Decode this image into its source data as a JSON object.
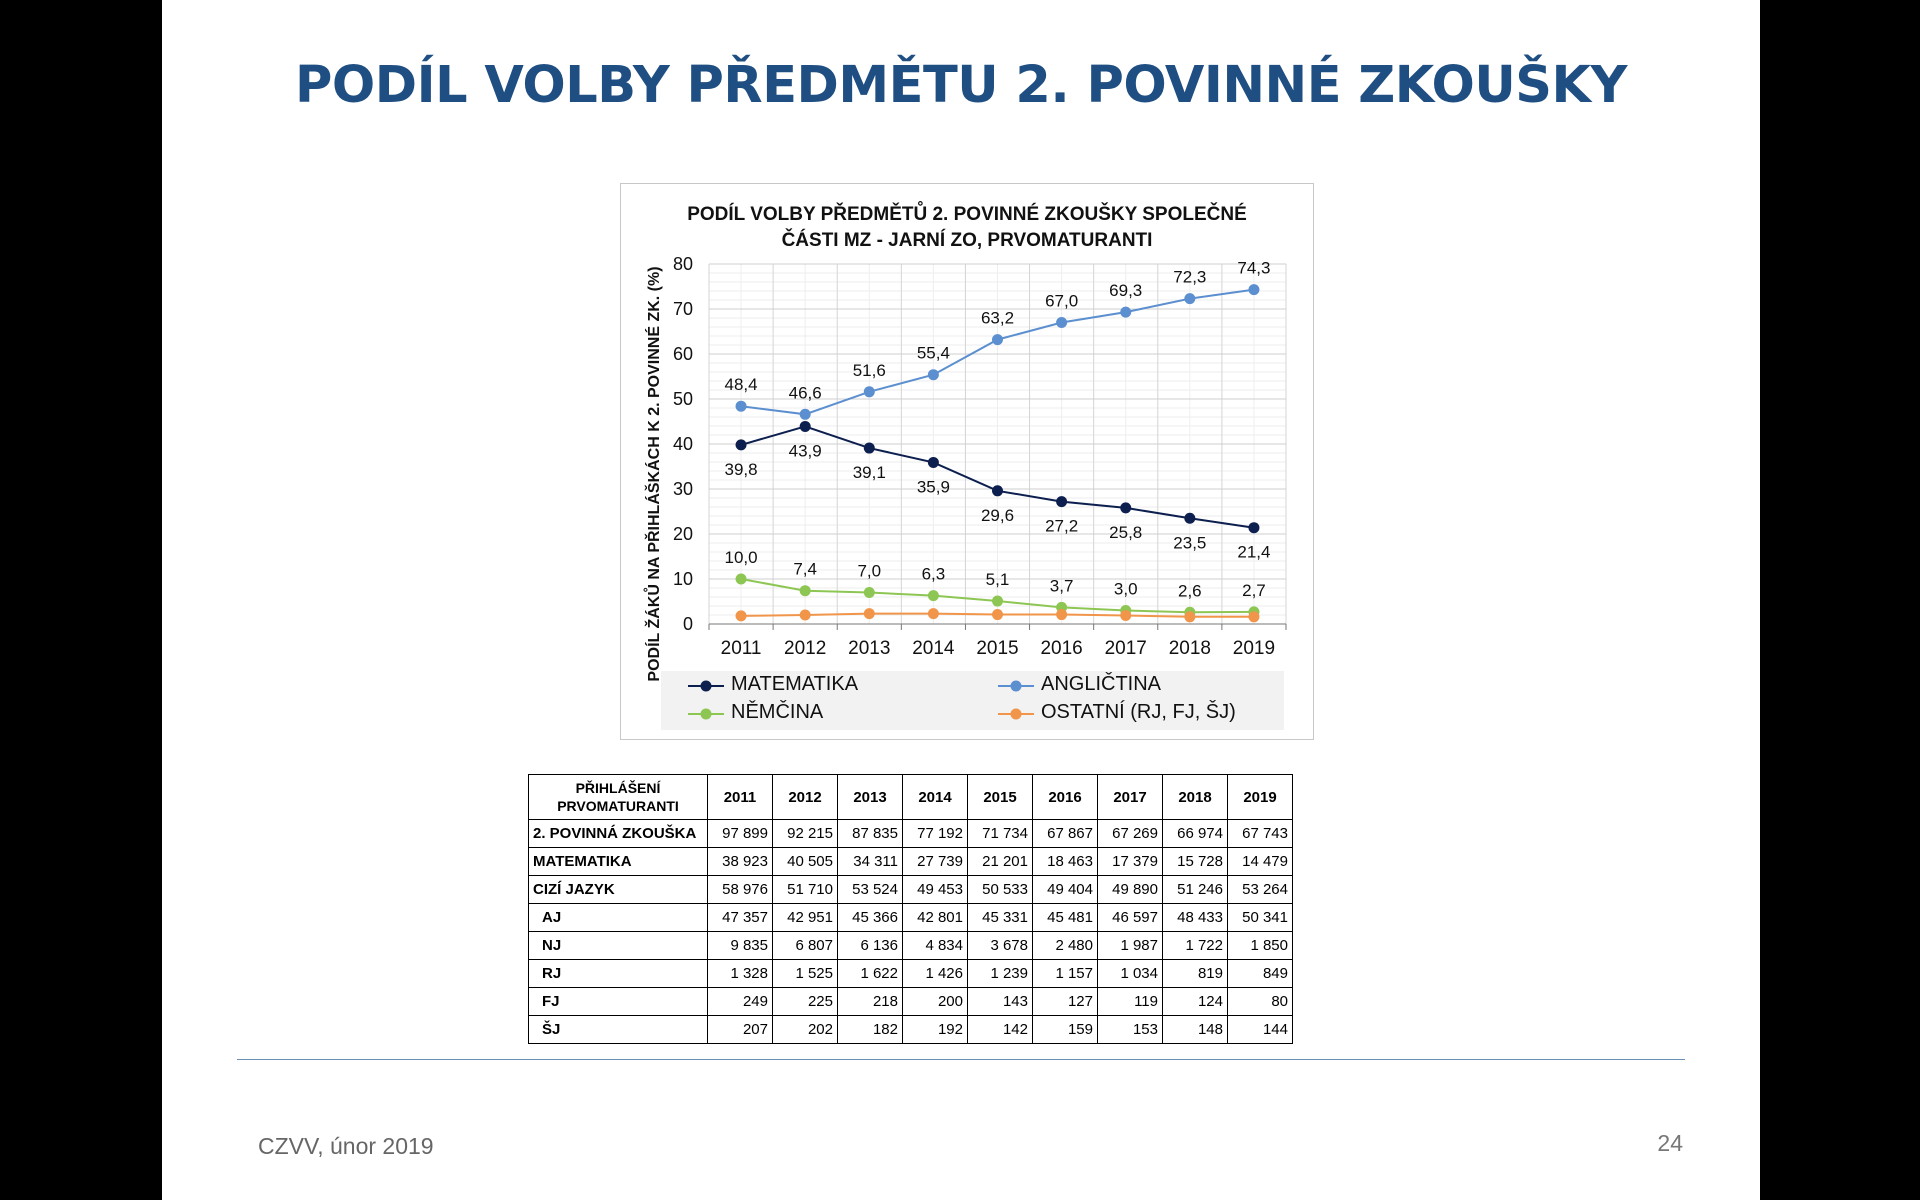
{
  "slide": {
    "title": "PODÍL VOLBY PŘEDMĚTU 2. POVINNÉ ZKOUŠKY",
    "footer_left": "CZVV, únor 2019",
    "page_number": "24"
  },
  "chart_data": {
    "type": "line",
    "title_line1": "PODÍL VOLBY PŘEDMĚTŮ 2. POVINNÉ ZKOUŠKY SPOLEČNÉ",
    "title_line2": "ČÁSTI MZ - JARNÍ ZO, PRVOMATURANTI",
    "ylabel": "PODÍL ŽÁKŮ NA PŘIHLÁŠKÁCH K 2. POVINNÉ ZK. (%)",
    "xlabel": "",
    "categories": [
      "2011",
      "2012",
      "2013",
      "2014",
      "2015",
      "2016",
      "2017",
      "2018",
      "2019"
    ],
    "ylim": [
      0,
      80
    ],
    "yticks": [
      0,
      10,
      20,
      30,
      40,
      50,
      60,
      70,
      80
    ],
    "grid": true,
    "legend_position": "bottom",
    "series": [
      {
        "name": "MATEMATIKA",
        "color": "#0d1f4f",
        "values": [
          39.8,
          43.9,
          39.1,
          35.9,
          29.6,
          27.2,
          25.8,
          23.5,
          21.4
        ],
        "labels": [
          "39,8",
          "43,9",
          "39,1",
          "35,9",
          "29,6",
          "27,2",
          "25,8",
          "23,5",
          "21,4"
        ],
        "label_pos": "below"
      },
      {
        "name": "ANGLIČTINA",
        "color": "#5b8fd0",
        "values": [
          48.4,
          46.6,
          51.6,
          55.4,
          63.2,
          67.0,
          69.3,
          72.3,
          74.3
        ],
        "labels": [
          "48,4",
          "46,6",
          "51,6",
          "55,4",
          "63,2",
          "67,0",
          "69,3",
          "72,3",
          "74,3"
        ],
        "label_pos": "above"
      },
      {
        "name": "NĚMČINA",
        "color": "#8dc653",
        "values": [
          10.0,
          7.4,
          7.0,
          6.3,
          5.1,
          3.7,
          3.0,
          2.6,
          2.7
        ],
        "labels": [
          "10,0",
          "7,4",
          "7,0",
          "6,3",
          "5,1",
          "3,7",
          "3,0",
          "2,6",
          "2,7"
        ],
        "label_pos": "above"
      },
      {
        "name": "OSTATNÍ (RJ, FJ, ŠJ)",
        "color": "#f0954a",
        "values": [
          1.8,
          2.0,
          2.3,
          2.3,
          2.1,
          2.1,
          1.9,
          1.6,
          1.6
        ],
        "labels": [],
        "label_pos": "none"
      }
    ]
  },
  "table": {
    "header_label": [
      "PŘIHLÁŠENÍ",
      "PRVOMATURANTI"
    ],
    "years": [
      "2011",
      "2012",
      "2013",
      "2014",
      "2015",
      "2016",
      "2017",
      "2018",
      "2019"
    ],
    "rows": [
      {
        "label": "2. POVINNÁ ZKOUŠKA",
        "sub": false,
        "values": [
          "97 899",
          "92 215",
          "87 835",
          "77 192",
          "71 734",
          "67 867",
          "67 269",
          "66 974",
          "67 743"
        ]
      },
      {
        "label": "MATEMATIKA",
        "sub": false,
        "values": [
          "38 923",
          "40 505",
          "34 311",
          "27 739",
          "21 201",
          "18 463",
          "17 379",
          "15 728",
          "14 479"
        ]
      },
      {
        "label": "CIZÍ JAZYK",
        "sub": false,
        "values": [
          "58 976",
          "51 710",
          "53 524",
          "49 453",
          "50 533",
          "49 404",
          "49 890",
          "51 246",
          "53 264"
        ]
      },
      {
        "label": "AJ",
        "sub": true,
        "values": [
          "47 357",
          "42 951",
          "45 366",
          "42 801",
          "45 331",
          "45 481",
          "46 597",
          "48 433",
          "50 341"
        ]
      },
      {
        "label": "NJ",
        "sub": true,
        "values": [
          "9 835",
          "6 807",
          "6 136",
          "4 834",
          "3 678",
          "2 480",
          "1 987",
          "1 722",
          "1 850"
        ]
      },
      {
        "label": "RJ",
        "sub": true,
        "values": [
          "1 328",
          "1 525",
          "1 622",
          "1 426",
          "1 239",
          "1 157",
          "1 034",
          "819",
          "849"
        ]
      },
      {
        "label": "FJ",
        "sub": true,
        "values": [
          "249",
          "225",
          "218",
          "200",
          "143",
          "127",
          "119",
          "124",
          "80"
        ]
      },
      {
        "label": "ŠJ",
        "sub": true,
        "values": [
          "207",
          "202",
          "182",
          "192",
          "142",
          "159",
          "153",
          "148",
          "144"
        ]
      }
    ]
  }
}
